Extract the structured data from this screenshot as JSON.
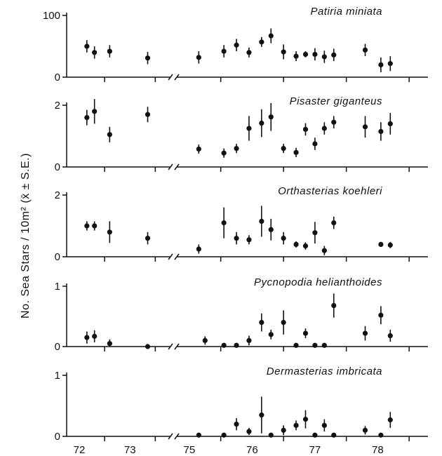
{
  "ylabel": "No. Sea Stars / 10m²   (x̄ ± S.E.)",
  "x_tick_labels": [
    "72",
    "73",
    "75",
    "76",
    "77",
    "78"
  ],
  "colors": {
    "ink": "#111111",
    "background": "#ffffff"
  },
  "chart_data": [
    {
      "type": "scatter",
      "title": "Patiria miniata",
      "ylim": [
        0,
        100
      ],
      "y_tick_labels": [
        "0",
        "100"
      ],
      "x": [
        72.15,
        72.3,
        72.6,
        73.35,
        75.15,
        75.55,
        75.75,
        75.95,
        76.15,
        76.3,
        76.5,
        76.7,
        76.85,
        77.0,
        77.15,
        77.3,
        77.8,
        78.05,
        78.2
      ],
      "y": [
        50,
        40,
        42,
        31,
        32,
        42,
        52,
        40,
        57,
        67,
        41,
        34,
        37,
        37,
        33,
        36,
        44,
        20,
        22
      ],
      "se": [
        10,
        10,
        10,
        10,
        10,
        10,
        10,
        8,
        8,
        12,
        12,
        8,
        5,
        10,
        10,
        10,
        10,
        12,
        12
      ]
    },
    {
      "type": "scatter",
      "title": "Pisaster giganteus",
      "ylim": [
        0,
        2
      ],
      "y_tick_labels": [
        "0",
        "2"
      ],
      "x": [
        72.15,
        72.3,
        72.6,
        73.35,
        75.15,
        75.55,
        75.75,
        75.95,
        76.15,
        76.3,
        76.5,
        76.7,
        76.85,
        77.0,
        77.15,
        77.3,
        77.8,
        78.05,
        78.2
      ],
      "y": [
        1.6,
        1.8,
        1.05,
        1.7,
        0.58,
        0.45,
        0.6,
        1.25,
        1.42,
        1.62,
        0.6,
        0.47,
        1.22,
        0.75,
        1.25,
        1.45,
        1.3,
        1.15,
        1.4
      ],
      "se": [
        0.25,
        0.4,
        0.25,
        0.25,
        0.15,
        0.15,
        0.15,
        0.4,
        0.45,
        0.45,
        0.15,
        0.15,
        0.2,
        0.2,
        0.2,
        0.2,
        0.35,
        0.3,
        0.35
      ]
    },
    {
      "type": "scatter",
      "title": "Orthasterias koehleri",
      "ylim": [
        0,
        2
      ],
      "y_tick_labels": [
        "0",
        "2"
      ],
      "x": [
        72.15,
        72.3,
        72.6,
        73.35,
        75.15,
        75.55,
        75.75,
        75.95,
        76.15,
        76.3,
        76.5,
        76.7,
        76.85,
        77.0,
        77.15,
        77.3,
        78.05,
        78.2
      ],
      "y": [
        1.0,
        1.0,
        0.8,
        0.6,
        0.25,
        1.1,
        0.6,
        0.55,
        1.15,
        0.88,
        0.6,
        0.4,
        0.35,
        0.78,
        0.2,
        1.1,
        0.4,
        0.38
      ],
      "se": [
        0.15,
        0.15,
        0.35,
        0.2,
        0.15,
        0.5,
        0.2,
        0.15,
        0.5,
        0.35,
        0.2,
        0.1,
        0.12,
        0.35,
        0.15,
        0.2,
        0.08,
        0.1
      ]
    },
    {
      "type": "scatter",
      "title": "Pycnopodia helianthoides",
      "ylim": [
        0,
        1
      ],
      "y_tick_labels": [
        "0",
        "1"
      ],
      "x": [
        72.15,
        72.3,
        72.6,
        73.35,
        75.25,
        75.55,
        75.75,
        75.95,
        76.15,
        76.3,
        76.5,
        76.7,
        76.85,
        77.0,
        77.15,
        77.3,
        77.8,
        78.05,
        78.2
      ],
      "y": [
        0.15,
        0.17,
        0.05,
        0.0,
        0.1,
        0.02,
        0.02,
        0.1,
        0.4,
        0.2,
        0.4,
        0.02,
        0.22,
        0.02,
        0.02,
        0.68,
        0.22,
        0.52,
        0.18
      ],
      "se": [
        0.1,
        0.1,
        0.07,
        0.0,
        0.07,
        0.0,
        0.0,
        0.08,
        0.15,
        0.08,
        0.2,
        0.0,
        0.08,
        0.0,
        0.0,
        0.2,
        0.12,
        0.15,
        0.1
      ]
    },
    {
      "type": "scatter",
      "title": "Dermasterias imbricata",
      "ylim": [
        0,
        1
      ],
      "y_tick_labels": [
        "0",
        "1"
      ],
      "x": [
        75.15,
        75.55,
        75.75,
        75.95,
        76.15,
        76.3,
        76.5,
        76.7,
        76.85,
        77.0,
        77.15,
        77.3,
        77.8,
        78.05,
        78.2
      ],
      "y": [
        0.02,
        0.02,
        0.2,
        0.08,
        0.35,
        0.02,
        0.1,
        0.18,
        0.28,
        0.02,
        0.18,
        0.02,
        0.1,
        0.02,
        0.27
      ],
      "se": [
        0.0,
        0.0,
        0.1,
        0.06,
        0.3,
        0.0,
        0.08,
        0.08,
        0.15,
        0.0,
        0.1,
        0.0,
        0.07,
        0.0,
        0.13
      ]
    }
  ]
}
